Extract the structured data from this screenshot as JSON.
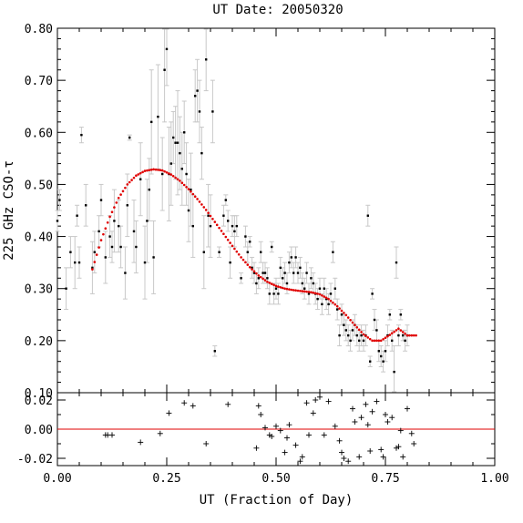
{
  "chart_data": [
    {
      "type": "scatter",
      "title": "UT Date: 20050320",
      "xlabel": "",
      "ylabel": "225 GHz CSO-τ",
      "xlim": [
        0.0,
        1.0
      ],
      "ylim": [
        0.1,
        0.8
      ],
      "yticks": [
        "0.10",
        "0.20",
        "0.30",
        "0.40",
        "0.50",
        "0.60",
        "0.70",
        "0.80"
      ],
      "grid": false,
      "error_bar_color": "#c8c8c8",
      "fit_color": "#e00000",
      "points": [
        [
          0.0,
          0.43,
          0.02
        ],
        [
          0.005,
          0.47,
          0.02
        ],
        [
          0.02,
          0.3,
          0.04
        ],
        [
          0.03,
          0.37,
          0.03
        ],
        [
          0.04,
          0.35,
          0.05
        ],
        [
          0.045,
          0.44,
          0.02
        ],
        [
          0.05,
          0.35,
          0.03
        ],
        [
          0.055,
          0.595,
          0.015
        ],
        [
          0.065,
          0.46,
          0.04
        ],
        [
          0.08,
          0.34,
          0.05
        ],
        [
          0.085,
          0.37,
          0.04
        ],
        [
          0.095,
          0.41,
          0.03
        ],
        [
          0.1,
          0.47,
          0.03
        ],
        [
          0.11,
          0.36,
          0.05
        ],
        [
          0.12,
          0.4,
          0.04
        ],
        [
          0.125,
          0.38,
          0.03
        ],
        [
          0.13,
          0.43,
          0.06
        ],
        [
          0.14,
          0.42,
          0.05
        ],
        [
          0.145,
          0.38,
          0.04
        ],
        [
          0.155,
          0.33,
          0.05
        ],
        [
          0.16,
          0.46,
          0.06
        ],
        [
          0.165,
          0.59,
          0.005
        ],
        [
          0.175,
          0.41,
          0.06
        ],
        [
          0.18,
          0.38,
          0.05
        ],
        [
          0.19,
          0.51,
          0.07
        ],
        [
          0.2,
          0.35,
          0.07
        ],
        [
          0.205,
          0.43,
          0.08
        ],
        [
          0.21,
          0.49,
          0.06
        ],
        [
          0.215,
          0.62,
          0.1
        ],
        [
          0.22,
          0.36,
          0.07
        ],
        [
          0.23,
          0.63,
          0.1
        ],
        [
          0.24,
          0.52,
          0.07
        ],
        [
          0.245,
          0.72,
          0.1
        ],
        [
          0.25,
          0.76,
          0.07
        ],
        [
          0.255,
          0.52,
          0.09
        ],
        [
          0.26,
          0.54,
          0.08
        ],
        [
          0.265,
          0.59,
          0.05
        ],
        [
          0.27,
          0.58,
          0.07
        ],
        [
          0.275,
          0.58,
          0.1
        ],
        [
          0.28,
          0.56,
          0.07
        ],
        [
          0.285,
          0.53,
          0.07
        ],
        [
          0.29,
          0.6,
          0.06
        ],
        [
          0.295,
          0.52,
          0.06
        ],
        [
          0.3,
          0.45,
          0.06
        ],
        [
          0.305,
          0.49,
          0.07
        ],
        [
          0.31,
          0.42,
          0.06
        ],
        [
          0.315,
          0.67,
          0.05
        ],
        [
          0.32,
          0.68,
          0.06
        ],
        [
          0.325,
          0.64,
          0.06
        ],
        [
          0.33,
          0.56,
          0.05
        ],
        [
          0.335,
          0.37,
          0.07
        ],
        [
          0.34,
          0.74,
          0.06
        ],
        [
          0.345,
          0.44,
          0.06
        ],
        [
          0.35,
          0.42,
          0.06
        ],
        [
          0.355,
          0.64,
          0.06
        ],
        [
          0.36,
          0.18,
          0.01
        ],
        [
          0.37,
          0.37,
          0.01
        ],
        [
          0.38,
          0.44,
          0.02
        ],
        [
          0.385,
          0.47,
          0.01
        ],
        [
          0.39,
          0.43,
          0.02
        ],
        [
          0.395,
          0.35,
          0.03
        ],
        [
          0.4,
          0.42,
          0.02
        ],
        [
          0.405,
          0.41,
          0.03
        ],
        [
          0.41,
          0.42,
          0.02
        ],
        [
          0.42,
          0.32,
          0.01
        ],
        [
          0.43,
          0.4,
          0.02
        ],
        [
          0.435,
          0.37,
          0.02
        ],
        [
          0.44,
          0.39,
          0.01
        ],
        [
          0.445,
          0.34,
          0.02
        ],
        [
          0.45,
          0.33,
          0.02
        ],
        [
          0.455,
          0.31,
          0.02
        ],
        [
          0.46,
          0.32,
          0.02
        ],
        [
          0.465,
          0.37,
          0.02
        ],
        [
          0.47,
          0.33,
          0.02
        ],
        [
          0.475,
          0.33,
          0.02
        ],
        [
          0.48,
          0.32,
          0.02
        ],
        [
          0.485,
          0.29,
          0.02
        ],
        [
          0.49,
          0.38,
          0.01
        ],
        [
          0.495,
          0.29,
          0.02
        ],
        [
          0.5,
          0.3,
          0.02
        ],
        [
          0.505,
          0.29,
          0.02
        ],
        [
          0.51,
          0.34,
          0.02
        ],
        [
          0.515,
          0.32,
          0.02
        ],
        [
          0.52,
          0.33,
          0.02
        ],
        [
          0.525,
          0.31,
          0.02
        ],
        [
          0.53,
          0.35,
          0.02
        ],
        [
          0.535,
          0.36,
          0.02
        ],
        [
          0.54,
          0.33,
          0.02
        ],
        [
          0.545,
          0.36,
          0.02
        ],
        [
          0.55,
          0.33,
          0.02
        ],
        [
          0.555,
          0.34,
          0.02
        ],
        [
          0.56,
          0.31,
          0.02
        ],
        [
          0.565,
          0.3,
          0.02
        ],
        [
          0.57,
          0.33,
          0.02
        ],
        [
          0.575,
          0.29,
          0.02
        ],
        [
          0.58,
          0.32,
          0.02
        ],
        [
          0.585,
          0.31,
          0.02
        ],
        [
          0.59,
          0.29,
          0.02
        ],
        [
          0.595,
          0.28,
          0.02
        ],
        [
          0.6,
          0.3,
          0.02
        ],
        [
          0.605,
          0.27,
          0.02
        ],
        [
          0.61,
          0.3,
          0.02
        ],
        [
          0.615,
          0.28,
          0.02
        ],
        [
          0.62,
          0.27,
          0.02
        ],
        [
          0.625,
          0.29,
          0.02
        ],
        [
          0.63,
          0.37,
          0.02
        ],
        [
          0.635,
          0.3,
          0.02
        ],
        [
          0.64,
          0.26,
          0.02
        ],
        [
          0.645,
          0.21,
          0.02
        ],
        [
          0.65,
          0.25,
          0.02
        ],
        [
          0.655,
          0.23,
          0.02
        ],
        [
          0.66,
          0.22,
          0.02
        ],
        [
          0.665,
          0.21,
          0.02
        ],
        [
          0.67,
          0.2,
          0.02
        ],
        [
          0.675,
          0.22,
          0.02
        ],
        [
          0.68,
          0.23,
          0.02
        ],
        [
          0.685,
          0.21,
          0.02
        ],
        [
          0.69,
          0.2,
          0.02
        ],
        [
          0.695,
          0.21,
          0.02
        ],
        [
          0.7,
          0.2,
          0.02
        ],
        [
          0.705,
          0.21,
          0.02
        ],
        [
          0.71,
          0.44,
          0.02
        ],
        [
          0.715,
          0.16,
          0.01
        ],
        [
          0.72,
          0.29,
          0.01
        ],
        [
          0.725,
          0.24,
          0.02
        ],
        [
          0.73,
          0.22,
          0.02
        ],
        [
          0.735,
          0.18,
          0.02
        ],
        [
          0.74,
          0.17,
          0.02
        ],
        [
          0.745,
          0.16,
          0.02
        ],
        [
          0.75,
          0.18,
          0.02
        ],
        [
          0.755,
          0.21,
          0.02
        ],
        [
          0.76,
          0.25,
          0.01
        ],
        [
          0.765,
          0.2,
          0.02
        ],
        [
          0.77,
          0.14,
          0.05
        ],
        [
          0.775,
          0.35,
          0.03
        ],
        [
          0.78,
          0.21,
          0.02
        ],
        [
          0.785,
          0.25,
          0.01
        ],
        [
          0.79,
          0.21,
          0.01
        ],
        [
          0.795,
          0.2,
          0.02
        ],
        [
          0.8,
          0.21,
          0.02
        ]
      ],
      "fit": [
        [
          0.08,
          0.337
        ],
        [
          0.1,
          0.393
        ],
        [
          0.12,
          0.438
        ],
        [
          0.14,
          0.474
        ],
        [
          0.16,
          0.5
        ],
        [
          0.18,
          0.517
        ],
        [
          0.2,
          0.526
        ],
        [
          0.22,
          0.529
        ],
        [
          0.24,
          0.527
        ],
        [
          0.26,
          0.519
        ],
        [
          0.28,
          0.507
        ],
        [
          0.3,
          0.491
        ],
        [
          0.32,
          0.472
        ],
        [
          0.34,
          0.451
        ],
        [
          0.36,
          0.428
        ],
        [
          0.38,
          0.405
        ],
        [
          0.4,
          0.382
        ],
        [
          0.42,
          0.36
        ],
        [
          0.44,
          0.341
        ],
        [
          0.46,
          0.325
        ],
        [
          0.48,
          0.313
        ],
        [
          0.5,
          0.305
        ],
        [
          0.52,
          0.3
        ],
        [
          0.54,
          0.297
        ],
        [
          0.56,
          0.295
        ],
        [
          0.58,
          0.293
        ],
        [
          0.6,
          0.289
        ],
        [
          0.62,
          0.28
        ],
        [
          0.64,
          0.266
        ],
        [
          0.66,
          0.249
        ],
        [
          0.68,
          0.23
        ],
        [
          0.7,
          0.212
        ],
        [
          0.72,
          0.2
        ],
        [
          0.74,
          0.2
        ],
        [
          0.76,
          0.211
        ],
        [
          0.78,
          0.223
        ],
        [
          0.8,
          0.21
        ],
        [
          0.82,
          0.21
        ]
      ]
    },
    {
      "type": "scatter",
      "title": "",
      "xlabel": "UT (Fraction of Day)",
      "ylabel": "",
      "xlim": [
        0.0,
        1.0
      ],
      "ylim": [
        -0.025,
        0.025
      ],
      "xticks": [
        "0.00",
        "0.25",
        "0.50",
        "0.75",
        "1.00"
      ],
      "yticks": [
        "-0.02",
        "0.00",
        "0.02"
      ],
      "zero_line_color": "#e00000",
      "points": [
        [
          0.11,
          -0.004
        ],
        [
          0.115,
          -0.004
        ],
        [
          0.125,
          -0.004
        ],
        [
          0.19,
          -0.009
        ],
        [
          0.235,
          -0.003
        ],
        [
          0.255,
          0.011
        ],
        [
          0.29,
          0.018
        ],
        [
          0.31,
          0.016
        ],
        [
          0.34,
          -0.01
        ],
        [
          0.39,
          0.017
        ],
        [
          0.455,
          -0.013
        ],
        [
          0.46,
          0.016
        ],
        [
          0.465,
          0.01
        ],
        [
          0.475,
          0.001
        ],
        [
          0.485,
          -0.004
        ],
        [
          0.49,
          -0.005
        ],
        [
          0.5,
          0.002
        ],
        [
          0.51,
          -0.001
        ],
        [
          0.52,
          -0.016
        ],
        [
          0.525,
          -0.006
        ],
        [
          0.53,
          0.003
        ],
        [
          0.545,
          -0.011
        ],
        [
          0.555,
          -0.022
        ],
        [
          0.56,
          -0.019
        ],
        [
          0.57,
          0.018
        ],
        [
          0.575,
          -0.004
        ],
        [
          0.585,
          0.011
        ],
        [
          0.59,
          0.02
        ],
        [
          0.6,
          0.022
        ],
        [
          0.61,
          -0.004
        ],
        [
          0.62,
          0.019
        ],
        [
          0.635,
          0.002
        ],
        [
          0.645,
          -0.008
        ],
        [
          0.65,
          -0.016
        ],
        [
          0.655,
          -0.02
        ],
        [
          0.665,
          -0.022
        ],
        [
          0.675,
          0.014
        ],
        [
          0.68,
          0.005
        ],
        [
          0.69,
          -0.019
        ],
        [
          0.695,
          0.008
        ],
        [
          0.705,
          0.017
        ],
        [
          0.71,
          0.003
        ],
        [
          0.715,
          -0.015
        ],
        [
          0.72,
          0.012
        ],
        [
          0.73,
          0.019
        ],
        [
          0.74,
          -0.014
        ],
        [
          0.745,
          -0.019
        ],
        [
          0.75,
          0.01
        ],
        [
          0.755,
          0.005
        ],
        [
          0.765,
          0.008
        ],
        [
          0.775,
          -0.013
        ],
        [
          0.78,
          -0.012
        ],
        [
          0.785,
          -0.001
        ],
        [
          0.79,
          -0.019
        ],
        [
          0.8,
          0.014
        ],
        [
          0.81,
          -0.003
        ],
        [
          0.815,
          -0.01
        ]
      ]
    }
  ]
}
